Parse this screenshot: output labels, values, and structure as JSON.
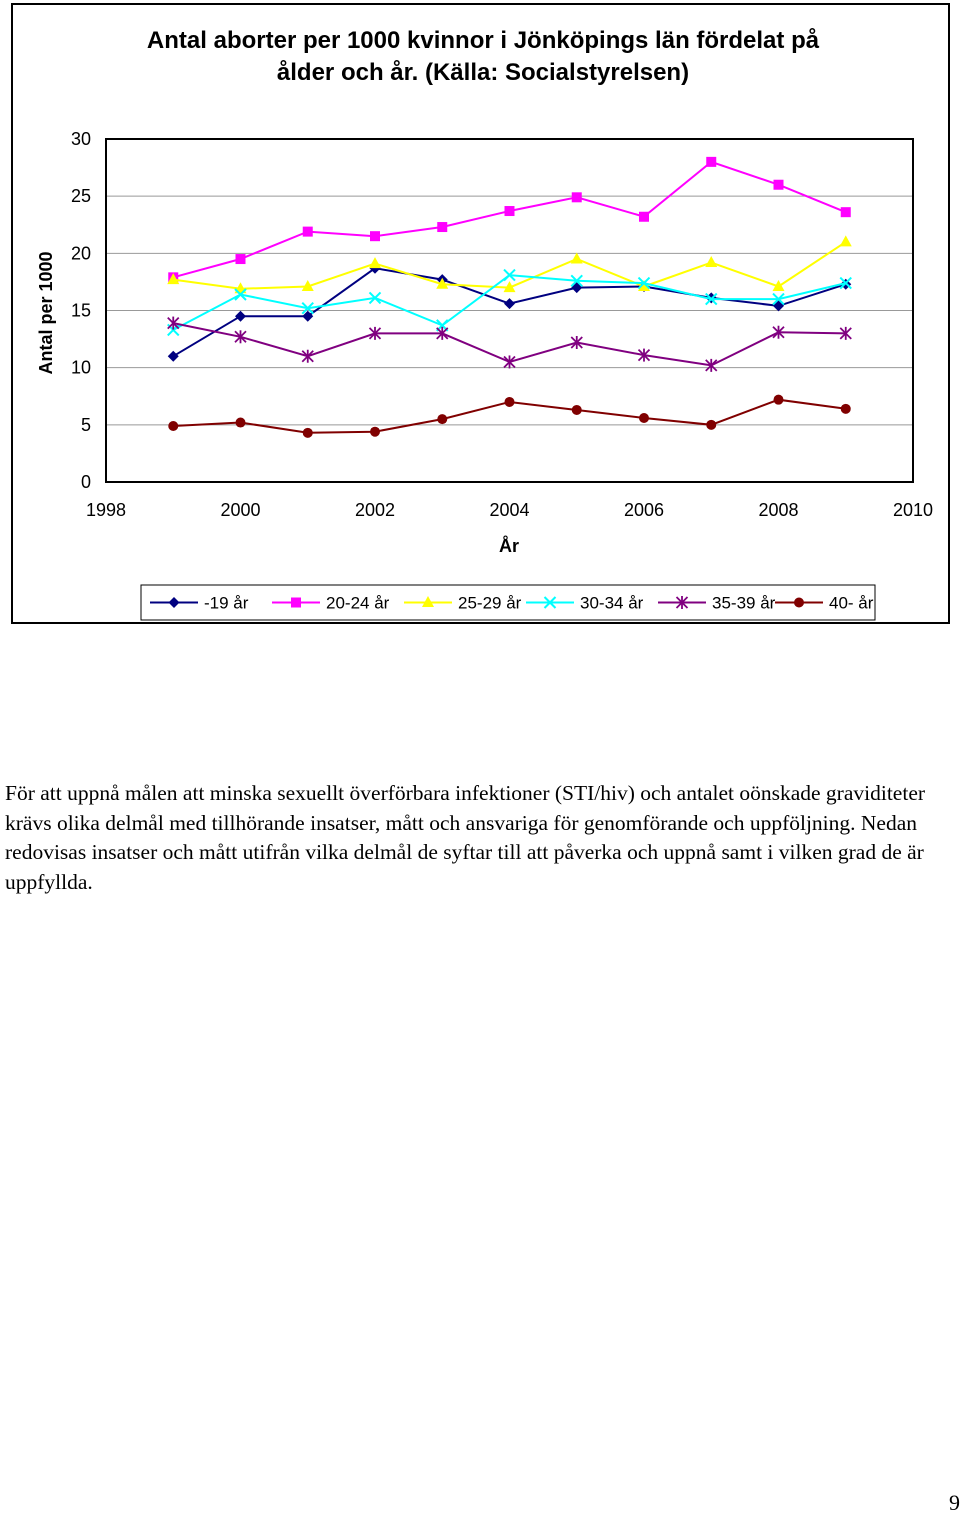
{
  "chart_data": {
    "type": "line",
    "title_line1": "Antal aborter per 1000 kvinnor i Jönköpings län fördelat på",
    "title_line2": "ålder och år. (Källa: Socialstyrelsen)",
    "xlabel": "År",
    "ylabel": "Antal per 1000",
    "xlim": [
      1998,
      2010
    ],
    "ylim": [
      0,
      30
    ],
    "x_ticks": [
      "1998",
      "2000",
      "2002",
      "2004",
      "2006",
      "2008",
      "2010"
    ],
    "y_ticks": [
      "0",
      "5",
      "10",
      "15",
      "20",
      "25",
      "30"
    ],
    "grid": "horizontal",
    "legend_position": "bottom",
    "x": [
      1999,
      2000,
      2001,
      2002,
      2003,
      2004,
      2005,
      2006,
      2007,
      2008,
      2009
    ],
    "series": [
      {
        "name": "-19 år",
        "color": "#000080",
        "marker": "diamond",
        "values": [
          11.0,
          14.5,
          14.5,
          18.7,
          17.7,
          15.6,
          17.0,
          17.1,
          16.1,
          15.4,
          17.3
        ]
      },
      {
        "name": "20-24 år",
        "color": "#FF00FF",
        "marker": "square",
        "values": [
          17.9,
          19.5,
          21.9,
          21.5,
          22.3,
          23.7,
          24.9,
          23.2,
          28.0,
          26.0,
          23.6
        ]
      },
      {
        "name": "25-29 år",
        "color": "#FFFF00",
        "marker": "triangle",
        "values": [
          17.7,
          16.9,
          17.1,
          19.1,
          17.3,
          17.0,
          19.5,
          17.1,
          19.2,
          17.1,
          21.0
        ]
      },
      {
        "name": "30-34 år",
        "color": "#00FFFF",
        "marker": "x",
        "values": [
          13.3,
          16.4,
          15.2,
          16.1,
          13.7,
          18.1,
          17.6,
          17.4,
          16.0,
          16.0,
          17.4
        ]
      },
      {
        "name": "35-39 år",
        "color": "#800080",
        "marker": "star",
        "values": [
          13.9,
          12.7,
          11.0,
          13.0,
          13.0,
          10.5,
          12.2,
          11.1,
          10.2,
          13.1,
          13.0
        ]
      },
      {
        "name": "40- år",
        "color": "#800000",
        "marker": "circle",
        "values": [
          4.9,
          5.2,
          4.3,
          4.4,
          5.5,
          7.0,
          6.3,
          5.6,
          5.0,
          7.2,
          6.4
        ]
      }
    ]
  },
  "text": {
    "paragraph": "För att uppnå målen att minska sexuellt överförbara infektioner (STI/hiv) och antalet oönskade graviditeter krävs olika delmål med tillhörande insatser, mått och ansvariga för genomförande och uppföljning. Nedan redovisas insatser och mått utifrån vilka delmål de syftar till att påverka och uppnå samt i vilken grad de är uppfyllda.",
    "page_number": "9"
  }
}
